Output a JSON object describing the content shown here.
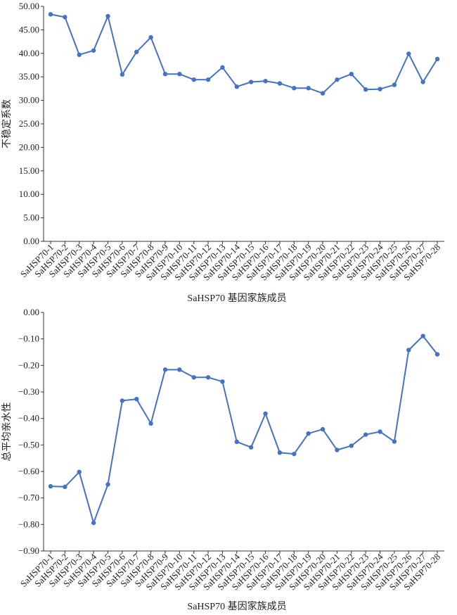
{
  "chart_data": [
    {
      "type": "line",
      "title": "",
      "xlabel": "SaHSP70 基因家族成员",
      "ylabel": "不稳定系数",
      "ylim": [
        0,
        50
      ],
      "ytick_values": [
        0,
        5,
        10,
        15,
        20,
        25,
        30,
        35,
        40,
        45,
        50
      ],
      "ytick_labels": [
        "0.00",
        "5.00",
        "10.00",
        "15.00",
        "20.00",
        "25.00",
        "30.00",
        "35.00",
        "40.00",
        "45.00",
        "50.00"
      ],
      "categories": [
        "SaHSP70-1",
        "SaHSP70-2",
        "SaHSP70-3",
        "SaHSP70-4",
        "SaHSP70-5",
        "SaHSP70-6",
        "SaHSP70-7",
        "SaHSP70-8",
        "SaHSP70-9",
        "SaHSP70-10",
        "SaHSP70-11",
        "SaHSP70-12",
        "SaHSP70-13",
        "SaHSP70-14",
        "SaHSP70-15",
        "SaHSP70-16",
        "SaHSP70-17",
        "SaHSP70-18",
        "SaHSP70-19",
        "SaHSP70-20",
        "SaHSP70-21",
        "SaHSP70-22",
        "SaHSP70-23",
        "SaHSP70-24",
        "SaHSP70-25",
        "SaHSP70-26",
        "SaHSP70-27",
        "SaHSP70-28"
      ],
      "values": [
        48.3,
        47.7,
        39.7,
        40.6,
        47.9,
        35.5,
        40.3,
        43.4,
        35.6,
        35.6,
        34.4,
        34.4,
        37.0,
        32.9,
        33.9,
        34.1,
        33.6,
        32.6,
        32.6,
        31.5,
        34.4,
        35.6,
        32.3,
        32.4,
        33.3,
        39.9,
        33.9,
        38.8
      ],
      "color": "#4472C4",
      "grid": false
    },
    {
      "type": "line",
      "title": "",
      "xlabel": "SaHSP70 基因家族成员",
      "ylabel": "总平均亲水性",
      "ylim": [
        -0.9,
        0
      ],
      "ytick_values": [
        0,
        -0.1,
        -0.2,
        -0.3,
        -0.4,
        -0.5,
        -0.6,
        -0.7,
        -0.8,
        -0.9
      ],
      "ytick_labels": [
        "0.00",
        "−0.10",
        "−0.20",
        "−0.30",
        "−0.40",
        "−0.50",
        "−0.60",
        "−0.70",
        "−0.80",
        "−0.90"
      ],
      "categories": [
        "SaHSP70-1",
        "SaHSP70-2",
        "SaHSP70-3",
        "SaHSP70-4",
        "SaHSP70-5",
        "SaHSP70-6",
        "SaHSP70-7",
        "SaHSP70-8",
        "SaHSP70-9",
        "SaHSP70-10",
        "SaHSP70-11",
        "SaHSP70-12",
        "SaHSP70-13",
        "SaHSP70-14",
        "SaHSP70-15",
        "SaHSP70-16",
        "SaHSP70-17",
        "SaHSP70-18",
        "SaHSP70-19",
        "SaHSP70-20",
        "SaHSP70-21",
        "SaHSP70-22",
        "SaHSP70-23",
        "SaHSP70-24",
        "SaHSP70-25",
        "SaHSP70-26",
        "SaHSP70-27",
        "SaHSP70-28"
      ],
      "values": [
        -0.656,
        -0.658,
        -0.602,
        -0.794,
        -0.649,
        -0.333,
        -0.327,
        -0.419,
        -0.216,
        -0.216,
        -0.245,
        -0.245,
        -0.261,
        -0.488,
        -0.509,
        -0.382,
        -0.529,
        -0.534,
        -0.457,
        -0.441,
        -0.519,
        -0.503,
        -0.461,
        -0.45,
        -0.487,
        -0.142,
        -0.089,
        -0.158
      ],
      "color": "#4472C4",
      "grid": false
    }
  ]
}
